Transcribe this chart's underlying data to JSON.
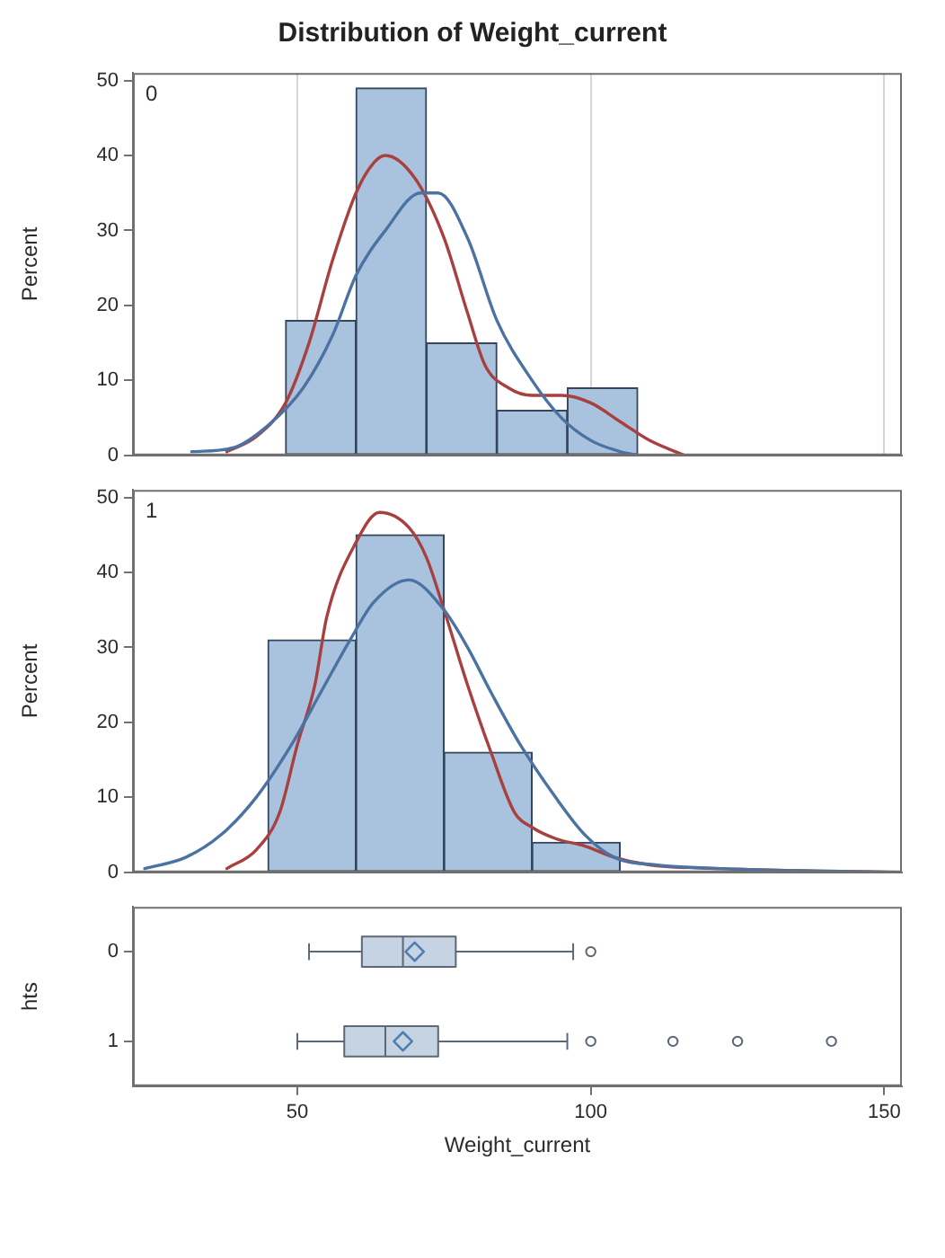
{
  "chart_data": [
    {
      "type": "histogram",
      "title": "Distribution of Weight_current",
      "ylabel": "Percent",
      "annotations": [
        "0"
      ],
      "bins": [
        48,
        60,
        72,
        84,
        96,
        108
      ],
      "series": [
        {
          "color": "#a9c2dd",
          "values": [
            18,
            49,
            15,
            6,
            9
          ]
        },
        {
          "type": "line",
          "color": "#4a72a3",
          "x": [
            32,
            39,
            45,
            51,
            56,
            60,
            65,
            71,
            74,
            79,
            84,
            90,
            95,
            100,
            105,
            108
          ],
          "values": [
            0.5,
            1,
            4,
            9,
            16,
            24,
            30,
            35,
            35,
            29,
            18,
            10,
            5,
            2,
            0.5,
            0
          ]
        },
        {
          "type": "line",
          "color": "#a8403f",
          "x": [
            38,
            43,
            48,
            52,
            56,
            60,
            63,
            65,
            70,
            75,
            79,
            82,
            86,
            90,
            95,
            100,
            105,
            110,
            116
          ],
          "values": [
            0.5,
            2.5,
            7,
            15,
            26,
            35,
            39,
            40,
            37,
            29,
            19,
            12,
            9,
            8,
            8,
            7,
            4.5,
            2,
            0
          ]
        }
      ],
      "xlim": [
        22,
        153
      ],
      "xticks": [
        50,
        100,
        150
      ],
      "ylim": [
        0,
        51
      ],
      "yticks": [
        0,
        10,
        20,
        30,
        40,
        50
      ],
      "grid": "x",
      "tick_labels": "y"
    },
    {
      "type": "histogram",
      "ylabel": "Percent",
      "annotations": [
        "1"
      ],
      "bins": [
        45,
        60,
        75,
        90,
        105
      ],
      "series": [
        {
          "color": "#a9c2dd",
          "values": [
            31,
            45,
            16,
            4
          ]
        },
        {
          "type": "line",
          "color": "#4a72a3",
          "x": [
            24,
            31,
            37,
            43,
            49,
            54,
            59,
            63,
            69,
            75,
            79,
            83,
            88,
            94,
            99,
            104,
            111,
            122,
            153
          ],
          "values": [
            0.5,
            2,
            5,
            10,
            17,
            24,
            31,
            36,
            39,
            35,
            30,
            24,
            17,
            10,
            5,
            2,
            1,
            0.5,
            0
          ]
        },
        {
          "type": "line",
          "color": "#a8403f",
          "x": [
            38,
            43,
            47,
            50,
            53,
            55,
            60,
            64,
            69,
            72,
            75,
            79,
            83,
            87,
            90,
            94,
            99,
            104,
            110,
            122,
            153
          ],
          "values": [
            0.5,
            3,
            8,
            17,
            25,
            34,
            44,
            48,
            46,
            42,
            35,
            25,
            16,
            8,
            6,
            4.5,
            3.5,
            2,
            1,
            0.5,
            0
          ]
        }
      ],
      "xlim": [
        22,
        153
      ],
      "ylim": [
        0,
        51
      ],
      "yticks": [
        0,
        10,
        20,
        30,
        40,
        50
      ],
      "tick_labels": "y"
    },
    {
      "type": "box",
      "orientation": "horizontal",
      "categories": [
        "0",
        "1"
      ],
      "boxes": [
        {
          "low": 52,
          "q1": 61,
          "median": 68,
          "q3": 77,
          "high": 97,
          "mean": 70,
          "outliers": [
            100
          ]
        },
        {
          "low": 50,
          "q1": 58,
          "median": 65,
          "q3": 74,
          "high": 96,
          "mean": 68,
          "outliers": [
            100,
            114,
            125,
            141
          ]
        }
      ],
      "color": "#c6d3e2",
      "xlabel": "Weight_current",
      "ylabel": "hts",
      "xlim": [
        22,
        153
      ],
      "xticks": [
        50,
        100,
        150
      ]
    }
  ]
}
